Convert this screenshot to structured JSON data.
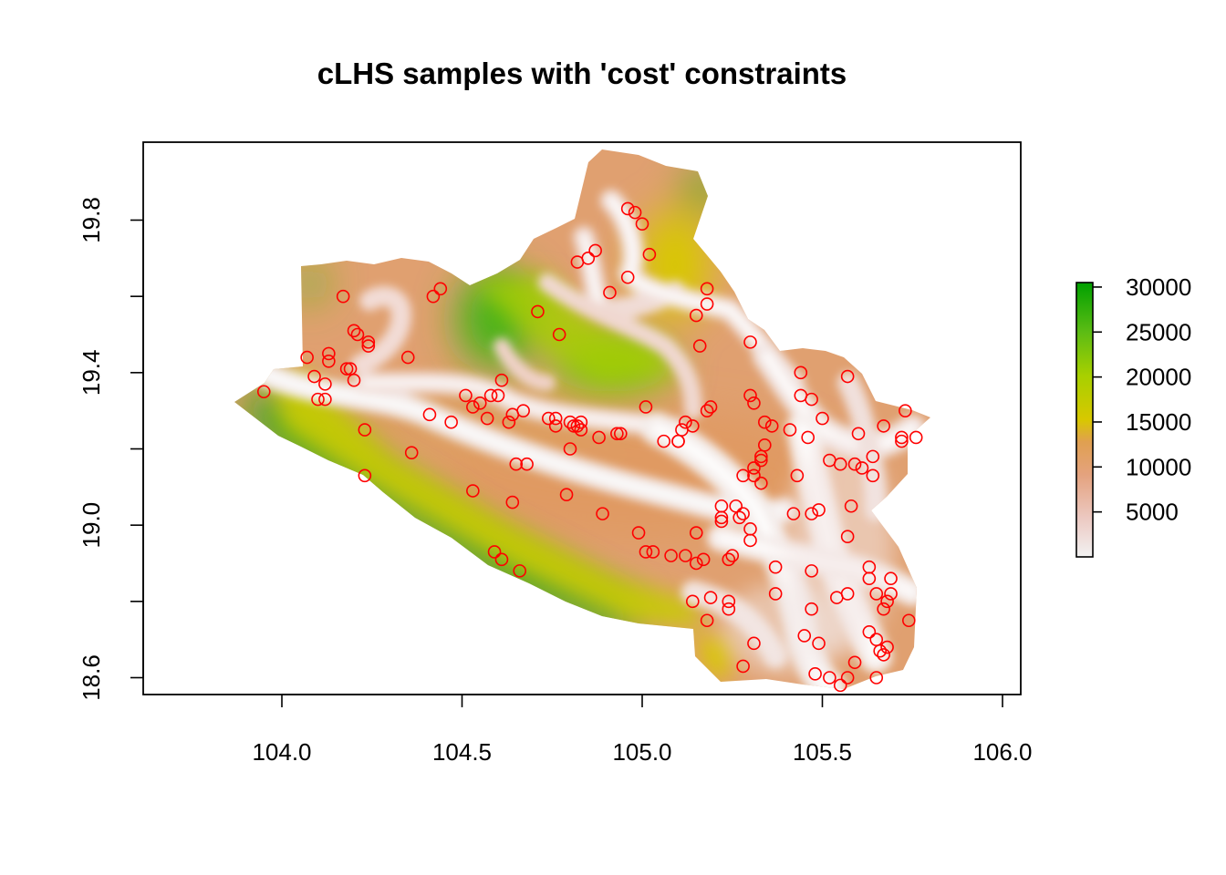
{
  "title": "cLHS samples with 'cost' constraints",
  "map": {
    "x_ticks": [
      "104.0",
      "104.5",
      "105.0",
      "105.5",
      "106.0"
    ],
    "x_tick_values": [
      104.0,
      104.5,
      105.0,
      105.5,
      106.0
    ],
    "y_ticks": [
      "18.6",
      "19.0",
      "19.4",
      "19.8"
    ],
    "y_tick_values": [
      18.6,
      18.8,
      19.0,
      19.2,
      19.4,
      19.6,
      19.8
    ],
    "y_labeled_values": [
      18.6,
      19.0,
      19.4,
      19.8
    ],
    "xlim": [
      103.62,
      106.05
    ],
    "ylim": [
      18.56,
      20.0
    ],
    "raster_palette": {
      "low": "#f2f2f2",
      "mid_low": "#e8b7a8",
      "mid": "#e0a070",
      "mid_high": "#d8c800",
      "high": "#64be10",
      "max": "#00a000"
    },
    "legend": {
      "ticks": [
        "30000",
        "25000",
        "20000",
        "15000",
        "10000",
        "5000"
      ],
      "tick_values": [
        30000,
        25000,
        20000,
        15000,
        10000,
        5000
      ],
      "range": [
        0,
        30500
      ]
    },
    "sample_color": "#ff0000",
    "samples": [
      [
        103.95,
        19.35
      ],
      [
        104.07,
        19.44
      ],
      [
        104.09,
        19.39
      ],
      [
        104.1,
        19.33
      ],
      [
        104.12,
        19.33
      ],
      [
        104.12,
        19.37
      ],
      [
        104.13,
        19.43
      ],
      [
        104.13,
        19.45
      ],
      [
        104.17,
        19.6
      ],
      [
        104.18,
        19.41
      ],
      [
        104.19,
        19.41
      ],
      [
        104.2,
        19.51
      ],
      [
        104.2,
        19.38
      ],
      [
        104.21,
        19.5
      ],
      [
        104.23,
        19.25
      ],
      [
        104.23,
        19.13
      ],
      [
        104.24,
        19.48
      ],
      [
        104.24,
        19.47
      ],
      [
        104.35,
        19.44
      ],
      [
        104.36,
        19.19
      ],
      [
        104.41,
        19.29
      ],
      [
        104.42,
        19.6
      ],
      [
        104.44,
        19.62
      ],
      [
        104.47,
        19.27
      ],
      [
        104.51,
        19.34
      ],
      [
        104.53,
        19.31
      ],
      [
        104.53,
        19.09
      ],
      [
        104.55,
        19.32
      ],
      [
        104.57,
        19.28
      ],
      [
        104.58,
        19.34
      ],
      [
        104.59,
        18.93
      ],
      [
        104.6,
        19.34
      ],
      [
        104.61,
        19.38
      ],
      [
        104.61,
        18.91
      ],
      [
        104.63,
        19.27
      ],
      [
        104.64,
        19.29
      ],
      [
        104.64,
        19.06
      ],
      [
        104.65,
        19.16
      ],
      [
        104.66,
        18.88
      ],
      [
        104.67,
        19.3
      ],
      [
        104.68,
        19.16
      ],
      [
        104.71,
        19.56
      ],
      [
        104.74,
        19.28
      ],
      [
        104.76,
        19.28
      ],
      [
        104.76,
        19.26
      ],
      [
        104.77,
        19.5
      ],
      [
        104.79,
        19.08
      ],
      [
        104.8,
        19.27
      ],
      [
        104.8,
        19.2
      ],
      [
        104.81,
        19.26
      ],
      [
        104.82,
        19.26
      ],
      [
        104.82,
        19.69
      ],
      [
        104.83,
        19.27
      ],
      [
        104.83,
        19.25
      ],
      [
        104.85,
        19.7
      ],
      [
        104.87,
        19.72
      ],
      [
        104.88,
        19.23
      ],
      [
        104.89,
        19.03
      ],
      [
        104.91,
        19.61
      ],
      [
        104.93,
        19.24
      ],
      [
        104.94,
        19.24
      ],
      [
        104.96,
        19.83
      ],
      [
        104.96,
        19.65
      ],
      [
        104.98,
        19.82
      ],
      [
        104.99,
        18.98
      ],
      [
        105.0,
        19.79
      ],
      [
        105.01,
        19.31
      ],
      [
        105.01,
        18.93
      ],
      [
        105.02,
        19.71
      ],
      [
        105.03,
        18.93
      ],
      [
        105.06,
        19.22
      ],
      [
        105.08,
        18.92
      ],
      [
        105.1,
        19.22
      ],
      [
        105.11,
        19.25
      ],
      [
        105.12,
        19.27
      ],
      [
        105.12,
        18.92
      ],
      [
        105.14,
        19.26
      ],
      [
        105.14,
        18.8
      ],
      [
        105.15,
        19.55
      ],
      [
        105.15,
        18.98
      ],
      [
        105.15,
        18.9
      ],
      [
        105.16,
        19.47
      ],
      [
        105.17,
        18.91
      ],
      [
        105.18,
        19.62
      ],
      [
        105.18,
        19.58
      ],
      [
        105.18,
        19.3
      ],
      [
        105.18,
        18.75
      ],
      [
        105.19,
        19.31
      ],
      [
        105.19,
        18.81
      ],
      [
        105.22,
        19.05
      ],
      [
        105.22,
        19.02
      ],
      [
        105.22,
        19.01
      ],
      [
        105.24,
        18.91
      ],
      [
        105.24,
        18.8
      ],
      [
        105.24,
        18.78
      ],
      [
        105.25,
        18.92
      ],
      [
        105.26,
        19.05
      ],
      [
        105.27,
        19.02
      ],
      [
        105.28,
        19.13
      ],
      [
        105.28,
        19.03
      ],
      [
        105.28,
        18.63
      ],
      [
        105.3,
        19.48
      ],
      [
        105.3,
        19.34
      ],
      [
        105.3,
        18.99
      ],
      [
        105.3,
        18.96
      ],
      [
        105.31,
        19.32
      ],
      [
        105.31,
        19.15
      ],
      [
        105.31,
        19.13
      ],
      [
        105.31,
        18.69
      ],
      [
        105.33,
        19.17
      ],
      [
        105.33,
        19.18
      ],
      [
        105.33,
        19.11
      ],
      [
        105.34,
        19.21
      ],
      [
        105.34,
        19.27
      ],
      [
        105.36,
        19.26
      ],
      [
        105.37,
        18.89
      ],
      [
        105.37,
        18.82
      ],
      [
        105.41,
        19.25
      ],
      [
        105.42,
        19.03
      ],
      [
        105.43,
        19.13
      ],
      [
        105.44,
        19.4
      ],
      [
        105.44,
        19.34
      ],
      [
        105.45,
        18.71
      ],
      [
        105.46,
        19.23
      ],
      [
        105.47,
        19.33
      ],
      [
        105.47,
        19.03
      ],
      [
        105.47,
        18.88
      ],
      [
        105.47,
        18.78
      ],
      [
        105.48,
        18.61
      ],
      [
        105.49,
        19.04
      ],
      [
        105.49,
        18.69
      ],
      [
        105.5,
        19.28
      ],
      [
        105.52,
        19.17
      ],
      [
        105.52,
        18.6
      ],
      [
        105.54,
        18.81
      ],
      [
        105.55,
        19.16
      ],
      [
        105.55,
        18.58
      ],
      [
        105.57,
        19.39
      ],
      [
        105.57,
        18.97
      ],
      [
        105.57,
        18.82
      ],
      [
        105.57,
        18.6
      ],
      [
        105.58,
        19.05
      ],
      [
        105.59,
        19.16
      ],
      [
        105.59,
        18.64
      ],
      [
        105.6,
        19.24
      ],
      [
        105.61,
        19.15
      ],
      [
        105.63,
        18.89
      ],
      [
        105.63,
        18.86
      ],
      [
        105.63,
        18.72
      ],
      [
        105.64,
        19.18
      ],
      [
        105.64,
        19.13
      ],
      [
        105.65,
        18.82
      ],
      [
        105.65,
        18.7
      ],
      [
        105.65,
        18.6
      ],
      [
        105.66,
        18.67
      ],
      [
        105.67,
        18.78
      ],
      [
        105.67,
        19.26
      ],
      [
        105.67,
        18.66
      ],
      [
        105.68,
        18.8
      ],
      [
        105.68,
        18.68
      ],
      [
        105.69,
        18.86
      ],
      [
        105.69,
        18.82
      ],
      [
        105.72,
        19.23
      ],
      [
        105.72,
        19.22
      ],
      [
        105.73,
        19.3
      ],
      [
        105.74,
        18.75
      ],
      [
        105.76,
        19.23
      ],
      [
        105.1,
        19.22
      ]
    ]
  }
}
